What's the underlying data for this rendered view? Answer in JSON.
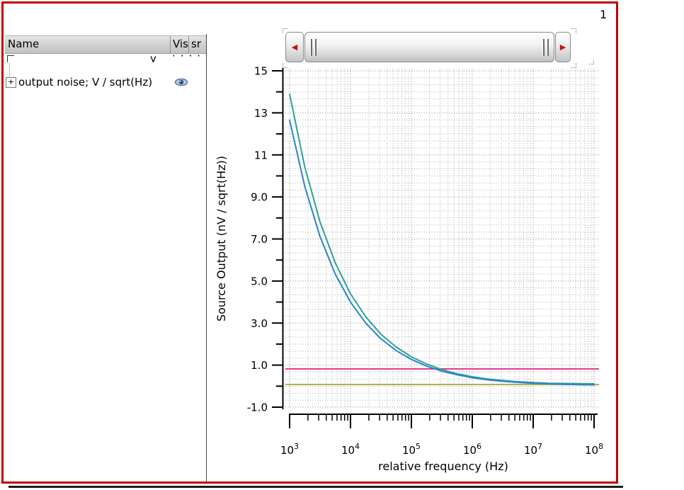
{
  "window": {
    "page_label": "1",
    "border_color": "#c10000"
  },
  "left_panel": {
    "header": {
      "columns": [
        "Name",
        "Vis",
        "sr"
      ]
    },
    "clipped_row": {
      "text_y": "y",
      "dots": "····"
    },
    "tree_row": {
      "expander": "+",
      "label": "output noise; V / sqrt(Hz)",
      "vis_icon": "eye"
    }
  },
  "scrollbar": {
    "orientation": "horizontal",
    "left_arrow": "◀",
    "right_arrow": "▶"
  },
  "chart_data": {
    "type": "line",
    "title": "",
    "xlabel": "relative frequency (Hz)",
    "ylabel": "Source Output (nV / sqrt(Hz))",
    "x_scale": "log",
    "xlim": [
      1000,
      100000000
    ],
    "ylim": [
      -1,
      15
    ],
    "grid": "dotted",
    "legend_position": "none",
    "y_ticks": [
      {
        "v": 15,
        "label": "15"
      },
      {
        "v": 13,
        "label": "13"
      },
      {
        "v": 11,
        "label": "11"
      },
      {
        "v": 9,
        "label": "9.0"
      },
      {
        "v": 7,
        "label": "7.0"
      },
      {
        "v": 5,
        "label": "5.0"
      },
      {
        "v": 3,
        "label": "3.0"
      },
      {
        "v": 1,
        "label": "1.0"
      },
      {
        "v": -1,
        "label": "-1.0"
      }
    ],
    "y_minor_ticks": [
      14,
      12,
      10,
      8,
      6,
      4,
      2,
      0
    ],
    "x_decade_exponents": [
      3,
      4,
      5,
      6,
      7,
      8
    ],
    "series": [
      {
        "name": "output-noise-curve-a",
        "color": "#2aa396",
        "style": "curve",
        "x": [
          1000,
          1778,
          3162,
          5623,
          10000,
          17783,
          31623,
          56234,
          100000,
          177828,
          316228,
          562341,
          1000000,
          1778279,
          3162278,
          5623413,
          10000000,
          17782794,
          31622777,
          56234133,
          100000000
        ],
        "y": [
          13.89,
          10.42,
          7.81,
          5.86,
          4.39,
          3.3,
          2.47,
          1.86,
          1.39,
          1.05,
          0.79,
          0.59,
          0.45,
          0.34,
          0.27,
          0.21,
          0.17,
          0.14,
          0.13,
          0.12,
          0.11
        ]
      },
      {
        "name": "output-noise-curve-b",
        "color": "#2e80d0",
        "style": "curve",
        "x": [
          1000,
          1778,
          3162,
          5623,
          10000,
          17783,
          31623,
          56234,
          100000,
          177828,
          316228,
          562341,
          1000000,
          1778279,
          3162278,
          5623413,
          10000000,
          17782794,
          31622777,
          56234133,
          100000000
        ],
        "y": [
          12.65,
          9.49,
          7.11,
          5.33,
          4.0,
          3.0,
          2.25,
          1.69,
          1.27,
          0.95,
          0.71,
          0.54,
          0.4,
          0.3,
          0.23,
          0.18,
          0.14,
          0.11,
          0.09,
          0.07,
          0.06
        ]
      },
      {
        "name": "noise-floor-line-pink",
        "color": "#e8398e",
        "style": "hline",
        "y_value": 0.82
      },
      {
        "name": "noise-floor-line-olive",
        "color": "#b1b14a",
        "style": "hline",
        "y_value": 0.08
      }
    ]
  }
}
